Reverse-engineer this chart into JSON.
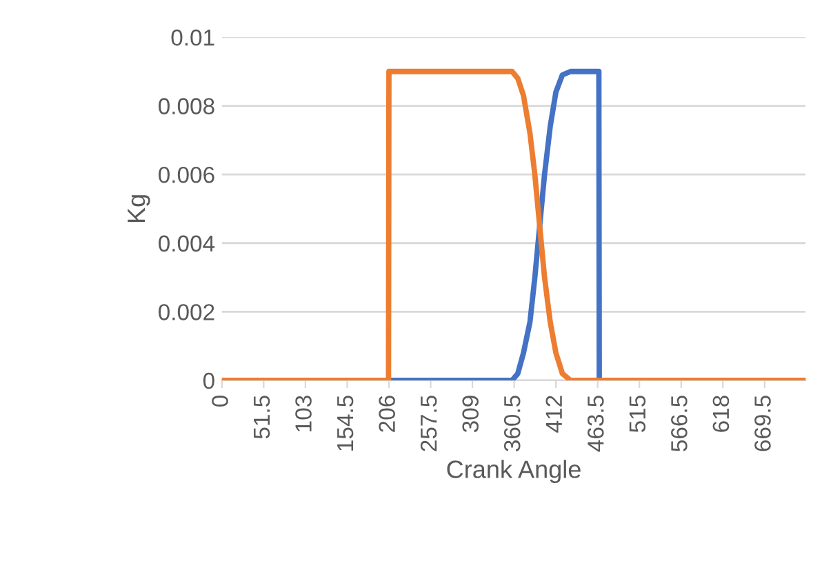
{
  "chart_data": {
    "type": "line",
    "xlabel": "Crank Angle",
    "ylabel": "Kg",
    "xlim": [
      0,
      720
    ],
    "xticks": [
      0,
      51.5,
      103,
      154.5,
      206,
      257.5,
      309,
      360.5,
      412,
      463.5,
      515,
      566.5,
      618,
      669.5
    ],
    "ylim": [
      0,
      0.01
    ],
    "yticks": [
      0,
      0.002,
      0.004,
      0.006,
      0.008,
      0.01
    ],
    "grid": "y",
    "series": [
      {
        "color": "#4472c4",
        "x": [
          0,
          206,
          358,
          365,
          372,
          380,
          386,
          392,
          398,
          405,
          412,
          420,
          430,
          465,
          465.5,
          720
        ],
        "values": [
          0,
          0,
          0,
          0.0002,
          0.0008,
          0.0017,
          0.003,
          0.0045,
          0.006,
          0.0074,
          0.0084,
          0.0089,
          0.009,
          0.009,
          0,
          0
        ]
      },
      {
        "color": "#ed7d31",
        "x": [
          0,
          205.5,
          206,
          358,
          365,
          372,
          380,
          386,
          392,
          398,
          405,
          412,
          420,
          430,
          720
        ],
        "values": [
          0,
          0,
          0.009,
          0.009,
          0.0088,
          0.0083,
          0.0072,
          0.006,
          0.0045,
          0.003,
          0.0017,
          0.0008,
          0.0002,
          0,
          0
        ]
      }
    ]
  }
}
